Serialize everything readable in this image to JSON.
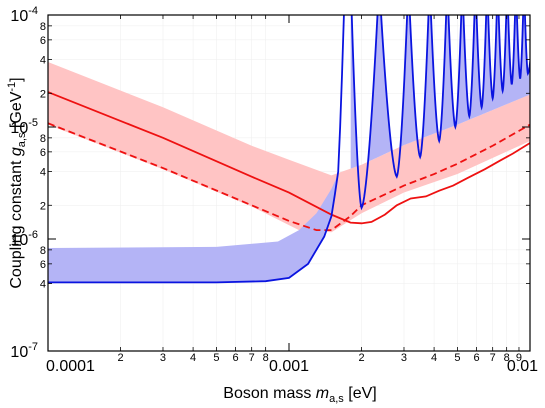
{
  "chart_data": {
    "type": "line",
    "xlabel": {
      "text": "Boson mass ",
      "var": "m",
      "sub": "a,s",
      "unit": " [eV]"
    },
    "ylabel": {
      "text": "Coupling constant ",
      "var": "g",
      "sub": "a,s",
      "unit": " [GeV",
      "unit_exp": "-1",
      "unit_close": "]"
    },
    "x_scale": "log",
    "y_scale": "log",
    "xlim": [
      0.0001,
      0.01
    ],
    "ylim": [
      1e-07,
      0.0001
    ],
    "grid": false,
    "x_major_ticks": [
      {
        "value": 0.0001,
        "label": "0.0001"
      },
      {
        "value": 0.001,
        "label": "0.001"
      },
      {
        "value": 0.01,
        "label": "0.01"
      }
    ],
    "x_minor_ticks": [
      {
        "value": 0.0002,
        "label": "2"
      },
      {
        "value": 0.0003,
        "label": "3"
      },
      {
        "value": 0.0004,
        "label": "4"
      },
      {
        "value": 0.0005,
        "label": "5"
      },
      {
        "value": 0.0006,
        "label": "6"
      },
      {
        "value": 0.0007,
        "label": "7"
      },
      {
        "value": 0.0008,
        "label": "8"
      },
      {
        "value": 0.002,
        "label": "2"
      },
      {
        "value": 0.003,
        "label": "3"
      },
      {
        "value": 0.004,
        "label": "4"
      },
      {
        "value": 0.005,
        "label": "5"
      },
      {
        "value": 0.006,
        "label": "6"
      },
      {
        "value": 0.007,
        "label": "7"
      },
      {
        "value": 0.008,
        "label": "8"
      },
      {
        "value": 0.009,
        "label": "9"
      }
    ],
    "y_major_ticks": [
      {
        "value": 1e-07,
        "base": "10",
        "exp": "-7"
      },
      {
        "value": 1e-06,
        "base": "10",
        "exp": "-6"
      },
      {
        "value": 1e-05,
        "base": "10",
        "exp": "-5"
      },
      {
        "value": 0.0001,
        "base": "10",
        "exp": "-4"
      }
    ],
    "y_minor_ticks": [
      {
        "value": 4e-07,
        "label": "4"
      },
      {
        "value": 6e-07,
        "label": "6"
      },
      {
        "value": 8e-07,
        "label": "8"
      },
      {
        "value": 2e-06,
        "label": "2"
      },
      {
        "value": 4e-06,
        "label": "4"
      },
      {
        "value": 6e-06,
        "label": "6"
      },
      {
        "value": 8e-06,
        "label": "8"
      },
      {
        "value": 2e-05,
        "label": "2"
      },
      {
        "value": 4e-05,
        "label": "4"
      },
      {
        "value": 6e-05,
        "label": "6"
      },
      {
        "value": 8e-05,
        "label": "8"
      }
    ],
    "colors": {
      "red": "#ee1111",
      "red_band": "#ffc4c4",
      "blue": "#0a14e0",
      "blue_band": "#b4b4f6"
    },
    "series": [
      {
        "style": "band",
        "color": "#ffc4c4",
        "upper": [
          [
            0.0001,
            3.8e-05
          ],
          [
            0.0003,
            1.5e-05
          ],
          [
            0.0007,
            6.8e-06
          ],
          [
            0.001,
            5.1e-06
          ],
          [
            0.0015,
            3.7e-06
          ],
          [
            0.002,
            4.6e-06
          ],
          [
            0.003,
            6.9e-06
          ],
          [
            0.005,
            1.05e-05
          ],
          [
            0.01,
            1.95e-05
          ]
        ],
        "lower": [
          [
            0.0001,
            1.05e-05
          ],
          [
            0.0003,
            4.2e-06
          ],
          [
            0.0007,
            1.95e-06
          ],
          [
            0.0011,
            1.2e-06
          ],
          [
            0.0015,
            1.15e-06
          ],
          [
            0.002,
            1.7e-06
          ],
          [
            0.003,
            2.6e-06
          ],
          [
            0.005,
            3.8e-06
          ],
          [
            0.01,
            7.5e-06
          ]
        ]
      },
      {
        "style": "band",
        "color": "#b4b4f6",
        "upper": [
          [
            0.0001,
            8.3e-07
          ],
          [
            0.0005,
            8.5e-07
          ],
          [
            0.0009,
            9.5e-07
          ],
          [
            0.0011,
            1.2e-06
          ],
          [
            0.0013,
            1.7e-06
          ],
          [
            0.0015,
            2.8e-06
          ],
          [
            0.0016,
            3.8e-06
          ]
        ],
        "lower": [
          [
            0.0001,
            4.1e-07
          ],
          [
            0.0005,
            4.1e-07
          ],
          [
            0.0008,
            4.2e-07
          ],
          [
            0.001,
            4.5e-07
          ],
          [
            0.0012,
            6e-07
          ],
          [
            0.0014,
            1.05e-06
          ],
          [
            0.0015,
            1.6e-06
          ],
          [
            0.0016,
            3.8e-06
          ]
        ]
      },
      {
        "style": "solid",
        "color": "#ee1111",
        "points": [
          [
            0.0001,
            2.05e-05
          ],
          [
            0.0003,
            8e-06
          ],
          [
            0.0007,
            3.6e-06
          ],
          [
            0.001,
            2.6e-06
          ],
          [
            0.0015,
            1.65e-06
          ],
          [
            0.0018,
            1.4e-06
          ],
          [
            0.002,
            1.38e-06
          ],
          [
            0.0022,
            1.42e-06
          ],
          [
            0.0025,
            1.65e-06
          ],
          [
            0.0028,
            2e-06
          ],
          [
            0.0032,
            2.3e-06
          ],
          [
            0.0037,
            2.4e-06
          ],
          [
            0.0042,
            2.7e-06
          ],
          [
            0.0048,
            3e-06
          ],
          [
            0.0055,
            3.5e-06
          ],
          [
            0.0065,
            4.2e-06
          ],
          [
            0.0075,
            5e-06
          ],
          [
            0.0085,
            5.8e-06
          ],
          [
            0.01,
            7.2e-06
          ]
        ]
      },
      {
        "style": "dashed",
        "color": "#ee1111",
        "points": [
          [
            0.0001,
            1.08e-05
          ],
          [
            0.0003,
            4.3e-06
          ],
          [
            0.0007,
            2e-06
          ],
          [
            0.001,
            1.45e-06
          ],
          [
            0.0013,
            1.2e-06
          ],
          [
            0.0015,
            1.2e-06
          ],
          [
            0.0018,
            1.6e-06
          ],
          [
            0.002,
            2e-06
          ],
          [
            0.0025,
            2.5e-06
          ],
          [
            0.003,
            3e-06
          ],
          [
            0.004,
            3.8e-06
          ],
          [
            0.005,
            4.7e-06
          ],
          [
            0.007,
            6.8e-06
          ],
          [
            0.01,
            1.05e-05
          ]
        ]
      },
      {
        "style": "solid",
        "color": "#0a14e0",
        "points": [
          [
            0.0001,
            4.1e-07
          ],
          [
            0.0005,
            4.1e-07
          ],
          [
            0.0008,
            4.2e-07
          ],
          [
            0.001,
            4.5e-07
          ],
          [
            0.0012,
            6e-07
          ],
          [
            0.0014,
            1.05e-06
          ],
          [
            0.0015,
            1.6e-06
          ],
          [
            0.00155,
            2.5e-06
          ],
          [
            0.0016,
            4e-06
          ],
          [
            0.00163,
            1e-05
          ],
          [
            0.00166,
            3e-05
          ],
          [
            0.00169,
            0.0001
          ]
        ],
        "resonances": [
          {
            "x": 0.002,
            "min": 1.9e-06
          },
          {
            "x": 0.0028,
            "min": 3.6e-06
          },
          {
            "x": 0.0035,
            "min": 5.4e-06
          },
          {
            "x": 0.0042,
            "min": 7.5e-06
          },
          {
            "x": 0.0049,
            "min": 1e-05
          },
          {
            "x": 0.0056,
            "min": 1.25e-05
          },
          {
            "x": 0.0063,
            "min": 1.5e-05
          },
          {
            "x": 0.007,
            "min": 1.8e-05
          },
          {
            "x": 0.0077,
            "min": 2.1e-05
          },
          {
            "x": 0.0084,
            "min": 2.4e-05
          },
          {
            "x": 0.0091,
            "min": 2.7e-05
          },
          {
            "x": 0.0098,
            "min": 3e-05
          }
        ]
      }
    ]
  }
}
